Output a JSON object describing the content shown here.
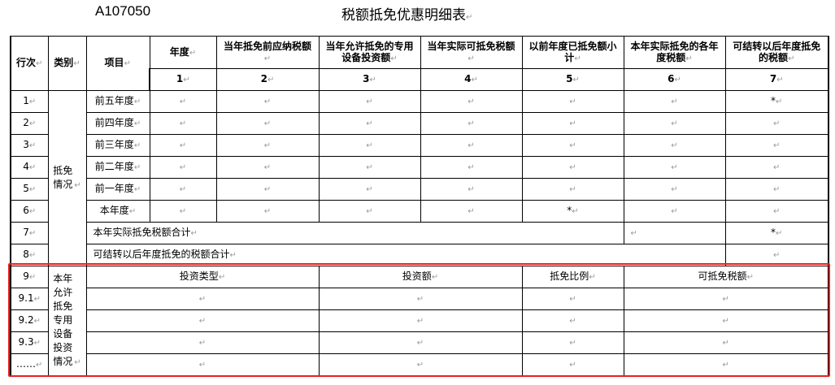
{
  "form": {
    "code": "A107050",
    "title": "税额抵免优惠明细表"
  },
  "header": {
    "row_no": "行次",
    "category": "类别",
    "item": "项目",
    "columns": [
      {
        "label": "年度",
        "num": "1"
      },
      {
        "label": "当年抵免前应纳税额",
        "num": "2"
      },
      {
        "label": "当年允许抵免的专用设备投资额",
        "num": "3"
      },
      {
        "label": "当年实际可抵免税额",
        "num": "4"
      },
      {
        "label": "以前年度已抵免额小计",
        "num": "5"
      },
      {
        "label": "本年实际抵免的各年度税额",
        "num": "6"
      },
      {
        "label": "可结转以后年度抵免的税额",
        "num": "7"
      }
    ]
  },
  "credit_section": {
    "category": "抵免情况",
    "rows": [
      {
        "no": "1",
        "item": "前五年度",
        "cells": [
          "",
          "",
          "",
          "",
          "",
          "",
          "*"
        ]
      },
      {
        "no": "2",
        "item": "前四年度",
        "cells": [
          "",
          "",
          "",
          "",
          "",
          "",
          ""
        ]
      },
      {
        "no": "3",
        "item": "前三年度",
        "cells": [
          "",
          "",
          "",
          "",
          "",
          "",
          ""
        ]
      },
      {
        "no": "4",
        "item": "前二年度",
        "cells": [
          "",
          "",
          "",
          "",
          "",
          "",
          ""
        ]
      },
      {
        "no": "5",
        "item": "前一年度",
        "cells": [
          "",
          "",
          "",
          "",
          "",
          "",
          ""
        ]
      },
      {
        "no": "6",
        "item": "本年度",
        "cells": [
          "",
          "",
          "",
          "",
          "*",
          "",
          ""
        ]
      }
    ],
    "total_row_7": {
      "no": "7",
      "item": "本年实际抵免税额合计",
      "col6": "",
      "col7": "*"
    },
    "total_row_8": {
      "no": "8",
      "item": "可结转以后年度抵免的税额合计",
      "col7": ""
    }
  },
  "equipment_section": {
    "category": "本年允许抵免专用设备投资情况",
    "header": {
      "no": "9",
      "investment_type": "投资类型",
      "investment_amount": "投资额",
      "credit_ratio": "抵免比例",
      "creditable_tax": "可抵免税额"
    },
    "rows": [
      {
        "no": "9.1"
      },
      {
        "no": "9.2"
      },
      {
        "no": "9.3"
      },
      {
        "no": "……"
      }
    ]
  },
  "colors": {
    "highlight_border": "#e8201e",
    "paragraph_mark": "#999999"
  }
}
